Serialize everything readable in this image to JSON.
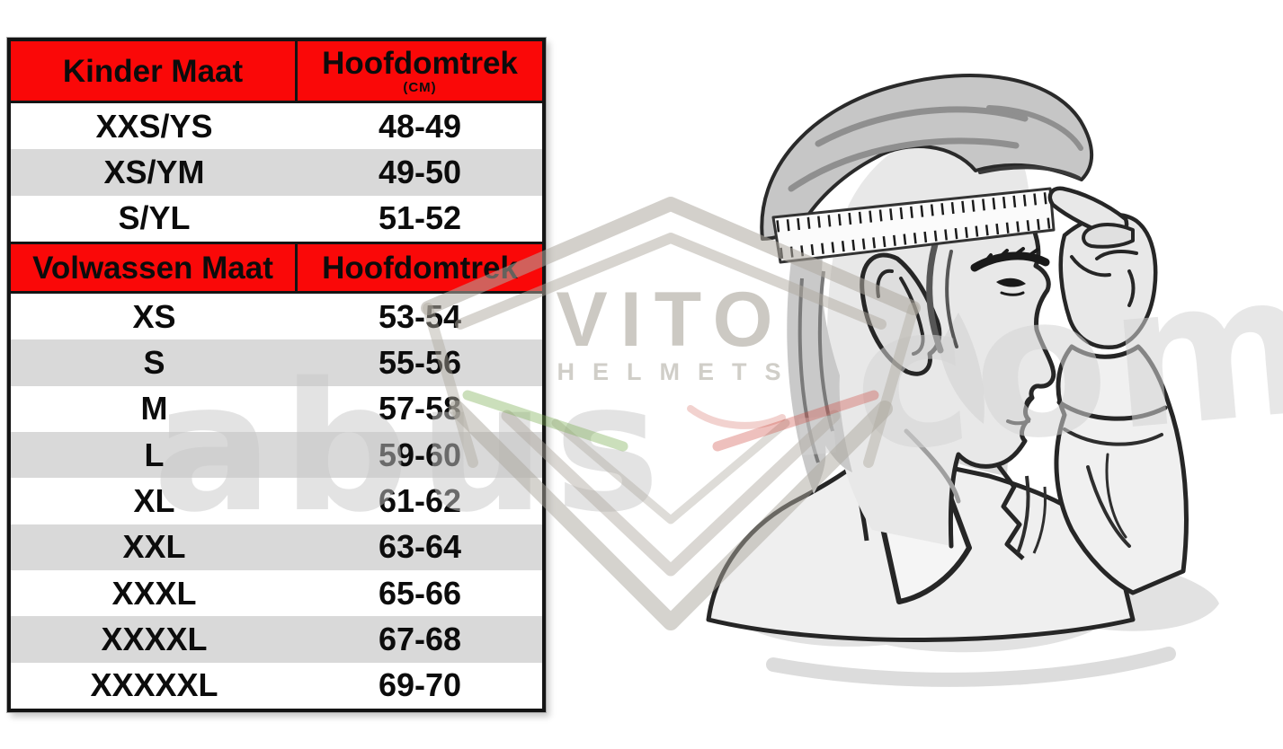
{
  "table": {
    "colors": {
      "header_bg": "#fa0808",
      "row_bg": "#ffffff",
      "row_alt_bg": "#d9d9d9",
      "border": "#141414",
      "text": "#0c0c0c"
    },
    "kinder": {
      "size_header": "Kinder Maat",
      "circumference_header": "Hoofdomtrek",
      "unit_label": "(CM)",
      "rows": [
        {
          "size": "XXS/YS",
          "range": "48-49"
        },
        {
          "size": "XS/YM",
          "range": "49-50"
        },
        {
          "size": "S/YL",
          "range": "51-52"
        }
      ]
    },
    "volwassen": {
      "size_header": "Volwassen Maat",
      "circumference_header": "Hoofdomtrek",
      "rows": [
        {
          "size": "XS",
          "range": "53-54"
        },
        {
          "size": "S",
          "range": "55-56"
        },
        {
          "size": "M",
          "range": "57-58"
        },
        {
          "size": "L",
          "range": "59-60"
        },
        {
          "size": "XL",
          "range": "61-62"
        },
        {
          "size": "XXL",
          "range": "63-64"
        },
        {
          "size": "XXXL",
          "range": "65-66"
        },
        {
          "size": "XXXXL",
          "range": "67-68"
        },
        {
          "size": "XXXXXL",
          "range": "69-70"
        }
      ]
    }
  },
  "watermark": {
    "brand": "VITO",
    "brand_sub": "HELMETS",
    "text_left": "abus",
    "text_right": ".com"
  },
  "chart_data": [
    {
      "type": "table",
      "title": "Kinder Maat",
      "columns": [
        "Kinder Maat",
        "Hoofdomtrek (CM)"
      ],
      "rows": [
        [
          "XXS/YS",
          "48-49"
        ],
        [
          "XS/YM",
          "49-50"
        ],
        [
          "S/YL",
          "51-52"
        ]
      ]
    },
    {
      "type": "table",
      "title": "Volwassen Maat",
      "columns": [
        "Volwassen Maat",
        "Hoofdomtrek"
      ],
      "rows": [
        [
          "XS",
          "53-54"
        ],
        [
          "S",
          "55-56"
        ],
        [
          "M",
          "57-58"
        ],
        [
          "L",
          "59-60"
        ],
        [
          "XL",
          "61-62"
        ],
        [
          "XXL",
          "63-64"
        ],
        [
          "XXXL",
          "65-66"
        ],
        [
          "XXXXL",
          "67-68"
        ],
        [
          "XXXXXL",
          "69-70"
        ]
      ]
    }
  ]
}
